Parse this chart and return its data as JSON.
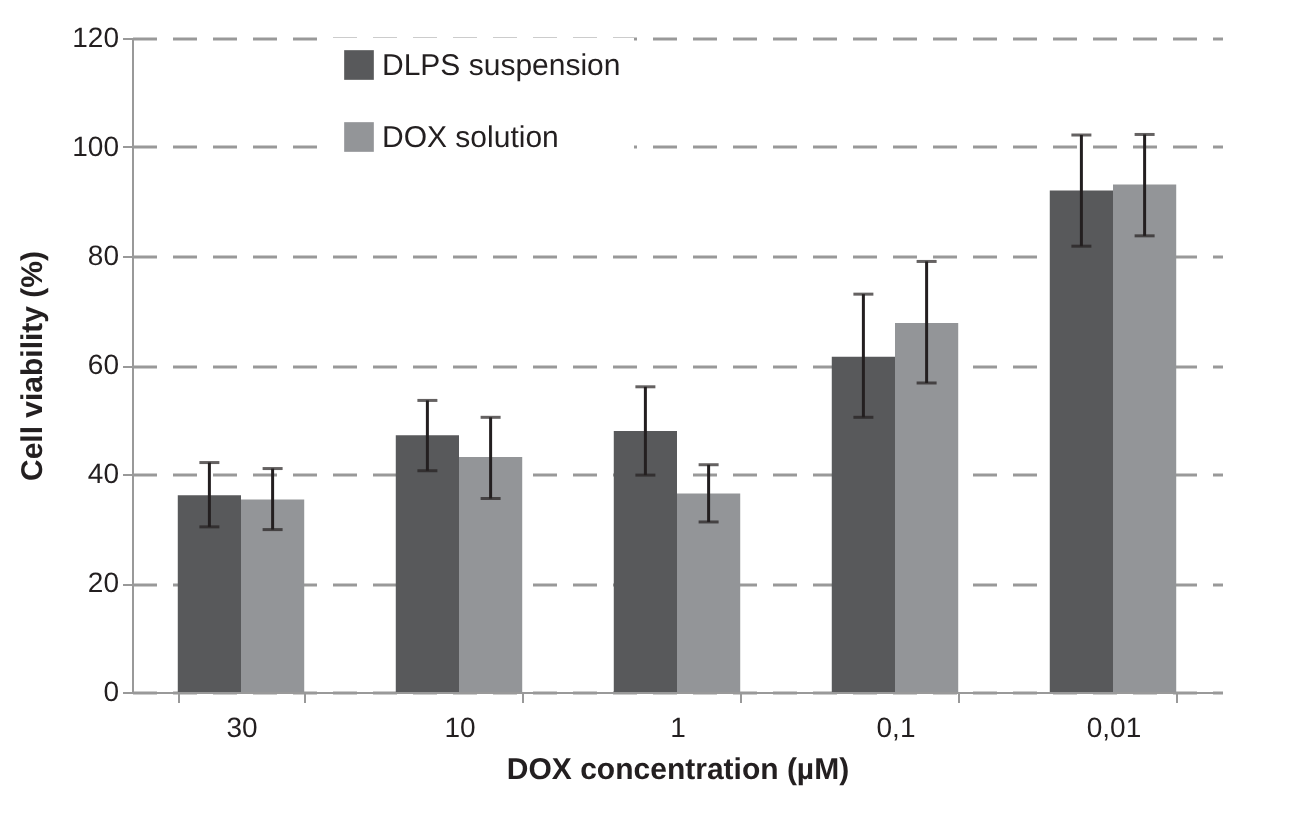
{
  "chart_data": {
    "type": "bar",
    "xlabel": "DOX concentration (µM)",
    "ylabel": "Cell viability (%)",
    "categories": [
      "30",
      "10",
      "1",
      "0,1",
      "0,01"
    ],
    "series": [
      {
        "name": "DLPS suspension",
        "color": "#58595b",
        "values": [
          36.1,
          47.1,
          47.9,
          61.5,
          92.0
        ],
        "errors": [
          [
            30.3,
            42.1
          ],
          [
            40.6,
            53.5
          ],
          [
            39.8,
            56.0
          ],
          [
            50.4,
            73.0
          ],
          [
            81.8,
            102.2
          ]
        ]
      },
      {
        "name": "DOX solution",
        "color": "#939598",
        "values": [
          35.3,
          43.1,
          36.4,
          67.7,
          93.1
        ],
        "errors": [
          [
            29.8,
            41.0
          ],
          [
            35.5,
            50.4
          ],
          [
            31.2,
            41.7
          ],
          [
            56.7,
            79.0
          ],
          [
            83.7,
            102.3
          ]
        ]
      }
    ],
    "ylim": [
      0,
      120
    ],
    "yticks": [
      0,
      20,
      40,
      60,
      80,
      100,
      120
    ],
    "grid": "y",
    "legend": "top left"
  }
}
